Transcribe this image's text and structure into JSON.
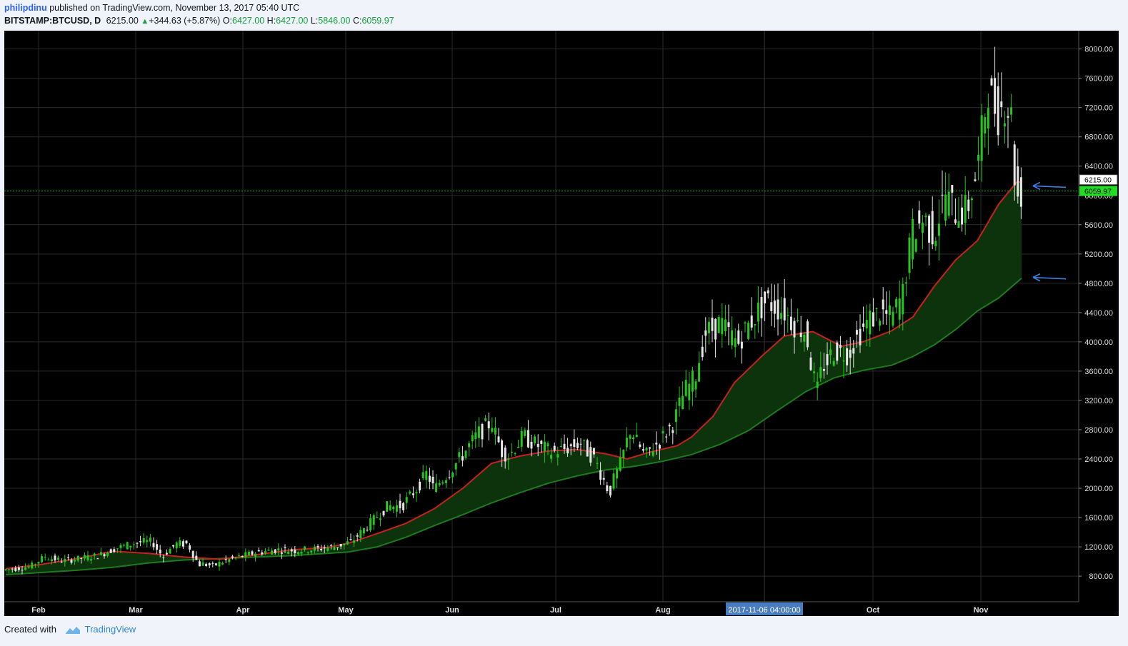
{
  "header": {
    "author": "philipdinu",
    "published_text": "published on TradingView.com, November 13, 2017 05:40 UTC",
    "symbol": "BITSTAMP:BTCUSD, D",
    "price": "6215.00",
    "change": "+344.63 (+5.87%)",
    "o_label": "O:",
    "o_value": "6427.00",
    "h_label": "H:",
    "h_value": "6427.00",
    "l_label": "L:",
    "l_value": "5846.00",
    "c_label": "C:",
    "c_value": "6059.97"
  },
  "footer": {
    "created_with": "Created with",
    "brand": "TradingView"
  },
  "colors": {
    "background": "#000000",
    "grid": "#2a2a2a",
    "up_candle": "#26c61e",
    "down_candle": "#e6e6e6",
    "ema_fast": "#c8201e",
    "ema_slow": "#1d7a1d",
    "band_fill": "#0d330d",
    "price_line": "#1fb31f",
    "arrow": "#3d7fe0",
    "crosshair_label_bg": "#4a7dc0",
    "last_price_bg": "#22dd22"
  },
  "chart_data": {
    "type": "candlestick",
    "symbol": "BITSTAMP:BTCUSD",
    "interval": "D",
    "x_axis": {
      "labels": [
        "Feb",
        "Mar",
        "Apr",
        "May",
        "Jun",
        "Jul",
        "Aug",
        "2017-11-06 04:00:00",
        "Oct",
        "Nov"
      ],
      "crosshair_label": "2017-11-06 04:00:00"
    },
    "y_axis": {
      "min": 450,
      "max": 8250,
      "ticks": [
        "800.00",
        "1200.00",
        "1600.00",
        "2000.00",
        "2400.00",
        "2800.00",
        "3200.00",
        "3600.00",
        "4000.00",
        "4400.00",
        "4800.00",
        "5200.00",
        "5600.00",
        "6000.00",
        "6400.00",
        "6800.00",
        "7200.00",
        "7600.00",
        "8000.00"
      ]
    },
    "price_labels": {
      "current": "6215.00",
      "last": "6059.97"
    },
    "last_value": 6059.97,
    "current_value": 6215,
    "grid": true,
    "annotations": [
      "arrow pointing at fast EMA near 6100",
      "arrow pointing at slow EMA near 4880"
    ],
    "ema_fast": [
      [
        0,
        900
      ],
      [
        50,
        960
      ],
      [
        100,
        1040
      ],
      [
        150,
        1140
      ],
      [
        200,
        1110
      ],
      [
        250,
        1060
      ],
      [
        300,
        1030
      ],
      [
        350,
        1090
      ],
      [
        400,
        1160
      ],
      [
        450,
        1190
      ],
      [
        480,
        1250
      ],
      [
        520,
        1380
      ],
      [
        560,
        1520
      ],
      [
        600,
        1720
      ],
      [
        640,
        2000
      ],
      [
        680,
        2340
      ],
      [
        720,
        2440
      ],
      [
        760,
        2510
      ],
      [
        800,
        2530
      ],
      [
        840,
        2470
      ],
      [
        870,
        2400
      ],
      [
        900,
        2490
      ],
      [
        940,
        2580
      ],
      [
        960,
        2700
      ],
      [
        990,
        2980
      ],
      [
        1020,
        3440
      ],
      [
        1060,
        3820
      ],
      [
        1090,
        4080
      ],
      [
        1130,
        4140
      ],
      [
        1170,
        3940
      ],
      [
        1200,
        4000
      ],
      [
        1240,
        4150
      ],
      [
        1270,
        4340
      ],
      [
        1300,
        4760
      ],
      [
        1330,
        5120
      ],
      [
        1360,
        5380
      ],
      [
        1390,
        5880
      ],
      [
        1415,
        6180
      ],
      [
        1422,
        6185
      ]
    ],
    "ema_slow": [
      [
        0,
        820
      ],
      [
        50,
        850
      ],
      [
        100,
        880
      ],
      [
        150,
        920
      ],
      [
        200,
        980
      ],
      [
        250,
        1020
      ],
      [
        300,
        1040
      ],
      [
        350,
        1060
      ],
      [
        400,
        1080
      ],
      [
        450,
        1110
      ],
      [
        480,
        1130
      ],
      [
        520,
        1200
      ],
      [
        560,
        1330
      ],
      [
        600,
        1490
      ],
      [
        640,
        1640
      ],
      [
        680,
        1800
      ],
      [
        720,
        1940
      ],
      [
        760,
        2070
      ],
      [
        800,
        2170
      ],
      [
        840,
        2250
      ],
      [
        880,
        2300
      ],
      [
        920,
        2370
      ],
      [
        960,
        2460
      ],
      [
        1000,
        2600
      ],
      [
        1040,
        2790
      ],
      [
        1080,
        3060
      ],
      [
        1120,
        3320
      ],
      [
        1160,
        3510
      ],
      [
        1200,
        3610
      ],
      [
        1240,
        3680
      ],
      [
        1270,
        3800
      ],
      [
        1300,
        3960
      ],
      [
        1330,
        4170
      ],
      [
        1360,
        4420
      ],
      [
        1390,
        4600
      ],
      [
        1422,
        4870
      ]
    ],
    "bullish_pivots": [
      [
        0,
        880
      ],
      [
        40,
        930
      ],
      [
        60,
        1060
      ],
      [
        85,
        1010
      ],
      [
        110,
        1040
      ],
      [
        135,
        1080
      ],
      [
        160,
        1180
      ],
      [
        190,
        1260
      ],
      [
        210,
        1270
      ],
      [
        225,
        1080
      ],
      [
        245,
        1240
      ],
      [
        260,
        1240
      ],
      [
        275,
        980
      ],
      [
        295,
        940
      ],
      [
        320,
        1030
      ],
      [
        355,
        1120
      ],
      [
        385,
        1160
      ],
      [
        410,
        1150
      ],
      [
        440,
        1170
      ],
      [
        470,
        1210
      ],
      [
        490,
        1270
      ],
      [
        520,
        1560
      ],
      [
        540,
        1750
      ],
      [
        560,
        1760
      ],
      [
        580,
        1980
      ],
      [
        595,
        2200
      ],
      [
        605,
        2000
      ],
      [
        625,
        2200
      ],
      [
        645,
        2450
      ],
      [
        665,
        2720
      ],
      [
        685,
        2900
      ],
      [
        700,
        2520
      ],
      [
        710,
        2450
      ],
      [
        730,
        2700
      ],
      [
        750,
        2590
      ],
      [
        770,
        2490
      ],
      [
        790,
        2540
      ],
      [
        810,
        2620
      ],
      [
        830,
        2400
      ],
      [
        850,
        1960
      ],
      [
        865,
        2300
      ],
      [
        880,
        2790
      ],
      [
        900,
        2450
      ],
      [
        920,
        2630
      ],
      [
        940,
        2880
      ],
      [
        955,
        3300
      ],
      [
        970,
        3500
      ],
      [
        985,
        4100
      ],
      [
        1005,
        4250
      ],
      [
        1030,
        3990
      ],
      [
        1050,
        4290
      ],
      [
        1070,
        4560
      ],
      [
        1095,
        4420
      ],
      [
        1110,
        4250
      ],
      [
        1125,
        4150
      ],
      [
        1140,
        3350
      ],
      [
        1150,
        3650
      ],
      [
        1165,
        3870
      ],
      [
        1185,
        3850
      ],
      [
        1200,
        4100
      ],
      [
        1215,
        4300
      ],
      [
        1230,
        4400
      ],
      [
        1245,
        4320
      ],
      [
        1260,
        4600
      ],
      [
        1275,
        5470
      ],
      [
        1290,
        5680
      ],
      [
        1305,
        5480
      ],
      [
        1320,
        5980
      ],
      [
        1335,
        5800
      ],
      [
        1350,
        5780
      ],
      [
        1365,
        6300
      ],
      [
        1380,
        7400
      ],
      [
        1395,
        7150
      ],
      [
        1405,
        7280
      ],
      [
        1412,
        7120
      ],
      [
        1418,
        6350
      ],
      [
        1422,
        6060
      ]
    ],
    "bearish_candles_desc": "white/grey candles interleaved with green up-candles along the trend"
  }
}
